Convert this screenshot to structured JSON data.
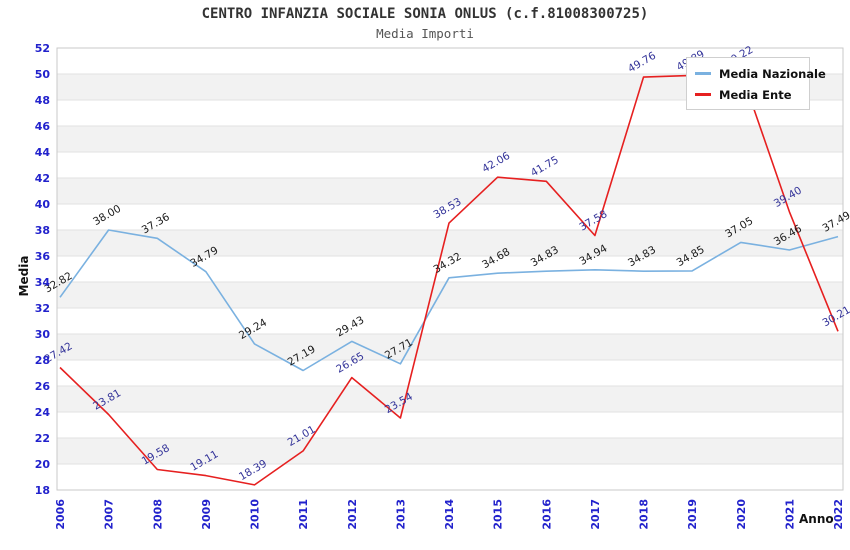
{
  "chart_data": {
    "type": "line",
    "title": "CENTRO INFANZIA SOCIALE SONIA ONLUS (c.f.81008300725)",
    "subtitle": "Media Importi",
    "xlabel": "Anno",
    "ylabel": "Media",
    "ylim": [
      18,
      52
    ],
    "ytick_step": 2,
    "grid": "horizontal alternating bands",
    "legend_position": "top-right",
    "categories": [
      "2006",
      "2007",
      "2008",
      "2009",
      "2010",
      "2011",
      "2012",
      "2013",
      "2014",
      "2015",
      "2016",
      "2017",
      "2018",
      "2019",
      "2020",
      "2021",
      "2022"
    ],
    "series": [
      {
        "name": "Media Nazionale",
        "color": "#7ab1e0",
        "label_color": "#1a1a1a",
        "values": [
          32.82,
          38.0,
          37.36,
          34.79,
          29.24,
          27.19,
          29.43,
          27.71,
          34.32,
          34.68,
          34.83,
          34.94,
          34.83,
          34.85,
          37.05,
          36.46,
          37.49
        ],
        "labels": [
          "32.82",
          "38.00",
          "37.36",
          "34.79",
          "29.24",
          "27.19",
          "29.43",
          "27.71",
          "34.32",
          "34.68",
          "34.83",
          "34.94",
          "34.83",
          "34.85",
          "37.05",
          "36.46",
          "37.49"
        ]
      },
      {
        "name": "Media Ente",
        "color": "#e62020",
        "label_color": "#333399",
        "values": [
          27.42,
          23.81,
          19.58,
          19.11,
          18.39,
          21.01,
          26.65,
          23.54,
          38.53,
          42.06,
          41.75,
          37.58,
          49.76,
          49.89,
          50.22,
          39.4,
          30.21
        ],
        "labels": [
          "27.42",
          "23.81",
          "19.58",
          "19.11",
          "18.39",
          "21.01",
          "26.65",
          "23.54",
          "38.53",
          "42.06",
          "41.75",
          "37.58",
          "49.76",
          "49.89",
          "50.22",
          "39.40",
          "30.21"
        ]
      }
    ],
    "colors": {
      "axis_tick_text": "#2222cc",
      "band_fill": "#f2f2f2",
      "gridline": "#e2e2e2",
      "plot_border": "#c9c9c9",
      "title_text": "#333333",
      "subtitle_text": "#555555"
    }
  }
}
